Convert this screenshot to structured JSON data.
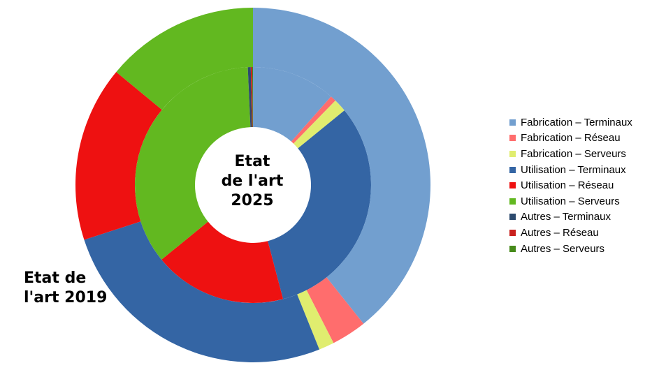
{
  "chart_data": {
    "type": "donut",
    "labels": {
      "inner": [
        "Etat",
        "de l'art",
        "2025"
      ],
      "outer": [
        "Etat de",
        "l'art 2019"
      ]
    },
    "categories": [
      "Fabrication – Terminaux",
      "Fabrication – Réseau",
      "Fabrication – Serveurs",
      "Utilisation – Terminaux",
      "Utilisation – Réseau",
      "Utilisation – Serveurs",
      "Autres – Terminaux",
      "Autres – Réseau",
      "Autres – Serveurs"
    ],
    "colors": [
      "#729fcf",
      "#ff6d6d",
      "#e0ed6f",
      "#3465a4",
      "#ee1111",
      "#62b820",
      "#2c4a6e",
      "#c9211e",
      "#468a1a"
    ],
    "series": [
      {
        "name": "Etat de l'art 2025",
        "ring": "inner",
        "values": [
          0.115,
          0.008,
          0.018,
          0.318,
          0.182,
          0.352,
          0.004,
          0.002,
          0.001
        ]
      },
      {
        "name": "Etat de l'art 2019",
        "ring": "outer",
        "values": [
          0.393,
          0.032,
          0.014,
          0.261,
          0.16,
          0.14,
          0.0,
          0.0,
          0.0
        ]
      }
    ],
    "start_angle": "12 o'clock",
    "direction": "clockwise",
    "legend_position": "right"
  }
}
